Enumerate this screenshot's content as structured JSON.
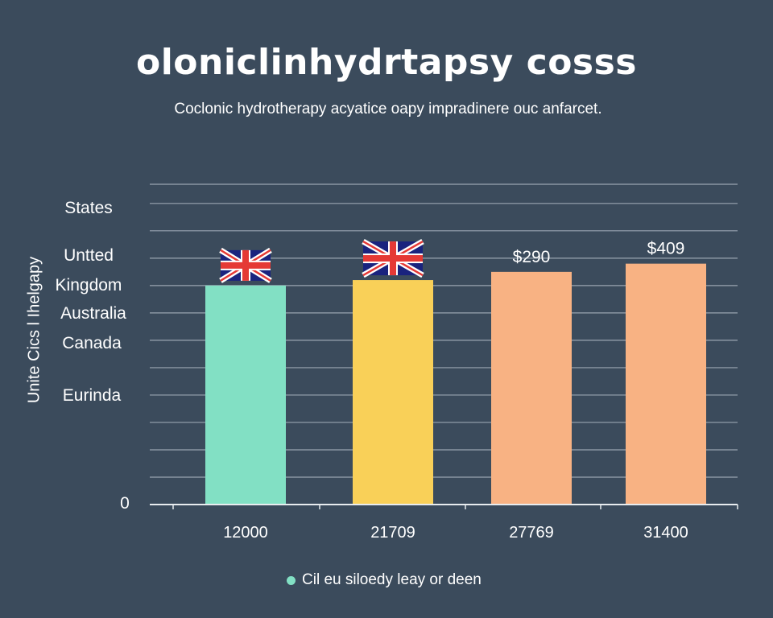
{
  "colors": {
    "background": "#3b4b5c",
    "grid": "#9aa5b1"
  },
  "chart_data": {
    "type": "bar",
    "title": "oloniclinhydrtapsy cosss",
    "subtitle": "Coclonic hydrotherapy acyatice oapy impradinere ouc anfarcet.",
    "ylabel": "Unite Cics l Ihelgapy",
    "y_category_labels": [
      "States",
      "Untted",
      "Kingdom",
      "Australia",
      "Canada",
      "Eurinda"
    ],
    "y_zero_label": "0",
    "categories": [
      "12000",
      "21709",
      "27769",
      "31400"
    ],
    "values": [
      8.0,
      8.2,
      8.5,
      8.8
    ],
    "ylim": [
      0,
      11.7
    ],
    "grid": true,
    "bar_colors": [
      "#82e0c4",
      "#f9d058",
      "#f8b283",
      "#f8b283"
    ],
    "bar_annotations": [
      {
        "type": "uk-flag-icon"
      },
      {
        "type": "uk-flag-icon"
      },
      {
        "type": "text",
        "text": "$290"
      },
      {
        "type": "text",
        "text": "$409"
      }
    ],
    "legend": {
      "position": "bottom",
      "entries": [
        {
          "label": "Cil eu siloedy leay or deen",
          "color": "#82e0c4"
        }
      ]
    }
  }
}
